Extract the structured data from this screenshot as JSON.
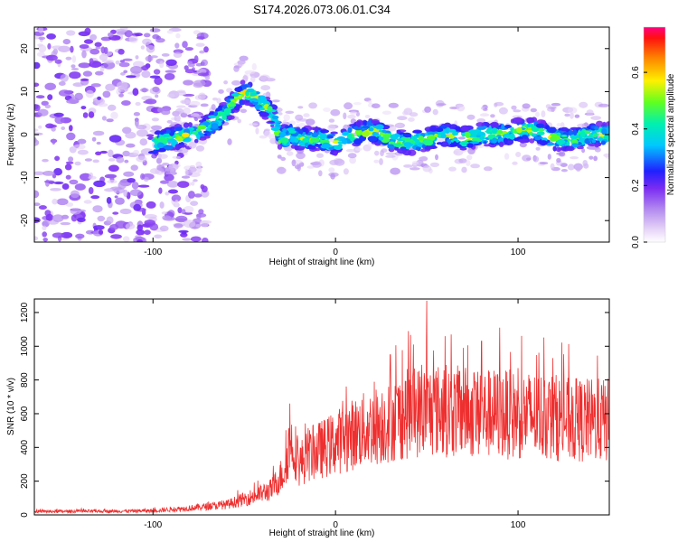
{
  "chart_data": [
    {
      "type": "heatmap",
      "title": "S174.2026.073.06.01.C34",
      "xlabel": "Height of straight line (km)",
      "ylabel": "Frequency (Hz)",
      "xlim": [
        -165,
        150
      ],
      "ylim": [
        -25,
        25
      ],
      "xticks": [
        -100,
        0,
        100
      ],
      "yticks": [
        -20,
        -10,
        0,
        10,
        20
      ],
      "ridge": {
        "description": "dominant spectral line frequency vs height",
        "x": [
          -100,
          -90,
          -80,
          -70,
          -60,
          -55,
          -50,
          -45,
          -40,
          -35,
          -30,
          -25,
          -20,
          -10,
          0,
          10,
          20,
          30,
          40,
          50,
          60,
          70,
          80,
          90,
          100,
          110,
          120,
          130,
          140,
          150
        ],
        "y": [
          -2,
          -1,
          0,
          2,
          5,
          8,
          10,
          9,
          7,
          5,
          -1,
          0,
          -1,
          -1,
          -2,
          0,
          1,
          -1,
          -2,
          -1,
          0,
          -1,
          0,
          0,
          1,
          1,
          -1,
          -1,
          0,
          0
        ]
      },
      "colorbar": {
        "label": "Normalized spectral amplitude",
        "range": [
          0.0,
          0.76
        ],
        "ticks": [
          0.0,
          0.2,
          0.4,
          0.6
        ],
        "tick_labels": [
          "0.0",
          "0.2",
          "0.4",
          "0.6"
        ]
      }
    },
    {
      "type": "line",
      "title": "",
      "xlabel": "Height of straight line (km)",
      "ylabel": "SNR (10 * v/v)",
      "xlim": [
        -165,
        150
      ],
      "ylim": [
        0,
        1280
      ],
      "xticks": [
        -100,
        0,
        100
      ],
      "yticks": [
        0,
        200,
        400,
        600,
        800,
        1000,
        1200
      ],
      "series": [
        {
          "name": "SNR",
          "color": "#ee2f2f",
          "envelope_x": [
            -165,
            -120,
            -100,
            -80,
            -60,
            -45,
            -35,
            -28,
            -25,
            -22,
            -20,
            -15,
            -10,
            -5,
            0,
            10,
            20,
            30,
            40,
            50,
            60,
            70,
            80,
            90,
            100,
            110,
            120,
            130,
            140,
            150
          ],
          "envelope_y": [
            20,
            22,
            25,
            40,
            60,
            110,
            150,
            260,
            430,
            380,
            300,
            350,
            380,
            400,
            430,
            480,
            520,
            560,
            600,
            620,
            620,
            610,
            600,
            600,
            590,
            590,
            580,
            560,
            560,
            560
          ],
          "peak_x": [
            50,
            40,
            60,
            90,
            80,
            70,
            30,
            100,
            -25
          ],
          "peak_y": [
            1270,
            1090,
            1060,
            1110,
            1030,
            990,
            950,
            870,
            660
          ]
        }
      ]
    }
  ]
}
